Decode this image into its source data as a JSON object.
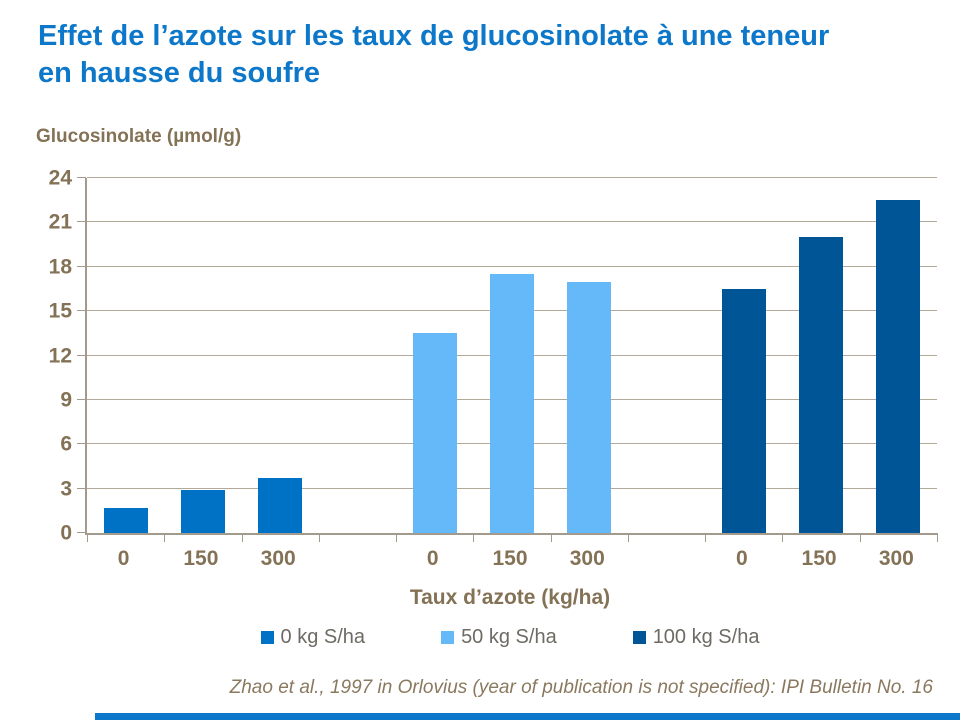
{
  "slide": {
    "title": "Effet de l’azote sur les taux de glucosinolate à une teneur\nen hausse du soufre",
    "source": "Zhao et al., 1997 in Orlovius (year of publication is not specified): IPI Bulletin No. 16"
  },
  "chart_data": {
    "type": "bar",
    "title": "Effet de l’azote sur les taux de glucosinolate à une teneur en hausse du soufre",
    "ylabel": "Glucosinolate (µmol/g)",
    "xlabel": "Taux d’azote (kg/ha)",
    "categories": [
      "0",
      "150",
      "300"
    ],
    "series": [
      {
        "name": "0 kg S/ha",
        "color": "#0072c6",
        "values": [
          1.7,
          2.9,
          3.7
        ]
      },
      {
        "name": "50 kg S/ha",
        "color": "#66b9f9",
        "values": [
          13.5,
          17.5,
          17.0
        ]
      },
      {
        "name": "100 kg S/ha",
        "color": "#005597",
        "values": [
          16.5,
          20.0,
          22.5
        ]
      }
    ],
    "ylim": [
      0,
      24
    ],
    "yticks": [
      0,
      3,
      6,
      9,
      12,
      15,
      18,
      21,
      24
    ],
    "grid": true,
    "legend_position": "bottom"
  },
  "colors": {
    "title": "#0d78c9",
    "label": "#847256",
    "legend_text": "#6e6a64",
    "citation": "#8a795f",
    "grid": "#b2a99a",
    "axis": "#a29a8c"
  }
}
